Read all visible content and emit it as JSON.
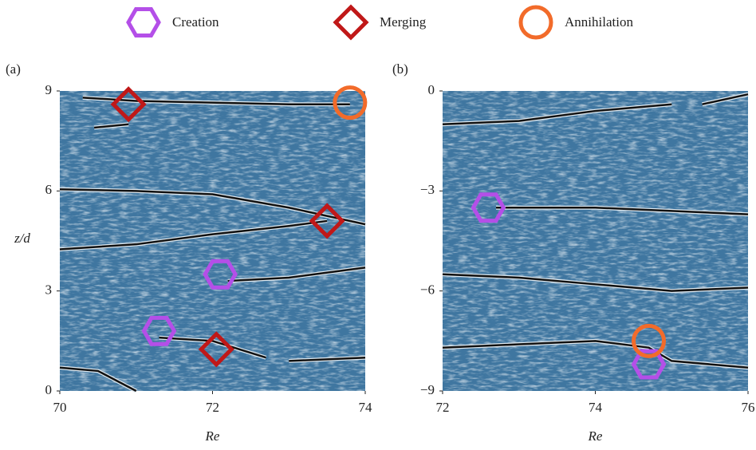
{
  "legend_names": [
    "Creation",
    "Merging",
    "Annihilation"
  ],
  "chart_data": [
    {
      "type": "scatter",
      "label": "(a)",
      "xlabel": "Re",
      "ylabel": "z/d",
      "xlim": [
        70,
        74
      ],
      "ylim": [
        0,
        9
      ],
      "xticks": [
        70,
        72,
        74
      ],
      "yticks": [
        0,
        3,
        6,
        9
      ],
      "series": [
        {
          "color": "#b44fe8",
          "marker": "hexagon",
          "x": [
            72.1,
            71.3
          ],
          "y": [
            3.5,
            1.8
          ]
        },
        {
          "color": "#c01818",
          "marker": "diamond",
          "x": [
            70.9,
            73.5,
            72.05
          ],
          "y": [
            8.6,
            5.1,
            1.25
          ]
        },
        {
          "color": "#f26b2a",
          "marker": "circle",
          "x": [
            73.8
          ],
          "y": [
            8.65
          ]
        }
      ],
      "lines": [
        {
          "x": [
            70.3,
            71,
            72,
            73,
            73.8
          ],
          "y": [
            8.8,
            8.7,
            8.65,
            8.6,
            8.6
          ]
        },
        {
          "x": [
            70.45,
            70.9
          ],
          "y": [
            7.9,
            8.0
          ]
        },
        {
          "x": [
            70,
            71,
            72,
            73,
            74
          ],
          "y": [
            6.05,
            6.0,
            5.9,
            5.5,
            5.0
          ]
        },
        {
          "x": [
            70,
            71,
            72,
            73,
            73.5
          ],
          "y": [
            4.25,
            4.4,
            4.7,
            4.95,
            5.1
          ]
        },
        {
          "x": [
            72.2,
            73,
            74
          ],
          "y": [
            3.3,
            3.4,
            3.7
          ]
        },
        {
          "x": [
            71.3,
            72,
            72.7
          ],
          "y": [
            1.6,
            1.5,
            1.0
          ]
        },
        {
          "x": [
            73,
            74
          ],
          "y": [
            0.9,
            1.0
          ]
        },
        {
          "x": [
            70,
            70.5,
            71
          ],
          "y": [
            0.7,
            0.6,
            0
          ]
        }
      ]
    },
    {
      "type": "scatter",
      "label": "(b)",
      "xlabel": "Re",
      "xlim": [
        72,
        76
      ],
      "ylim": [
        -9,
        0
      ],
      "xticks": [
        72,
        74,
        76
      ],
      "yticks": [
        0,
        {
          "value": -3,
          "label": "−3"
        },
        {
          "value": -6,
          "label": "−6"
        },
        {
          "value": -9,
          "label": "−9"
        }
      ],
      "series": [
        {
          "color": "#b44fe8",
          "marker": "hexagon",
          "x": [
            72.6,
            74.7
          ],
          "y": [
            -3.5,
            -8.2
          ]
        },
        {
          "color": "#f26b2a",
          "marker": "circle",
          "x": [
            74.7
          ],
          "y": [
            -7.5
          ]
        }
      ],
      "lines": [
        {
          "x": [
            72,
            73,
            74,
            75
          ],
          "y": [
            -1.0,
            -0.9,
            -0.6,
            -0.4
          ]
        },
        {
          "x": [
            75.4,
            76
          ],
          "y": [
            -0.4,
            -0.1
          ]
        },
        {
          "x": [
            72.7,
            74,
            75,
            76
          ],
          "y": [
            -3.5,
            -3.5,
            -3.6,
            -3.7
          ]
        },
        {
          "x": [
            72,
            73,
            74,
            75,
            76
          ],
          "y": [
            -5.5,
            -5.6,
            -5.8,
            -6.0,
            -5.9
          ]
        },
        {
          "x": [
            72,
            73,
            74,
            74.7,
            75,
            76
          ],
          "y": [
            -7.7,
            -7.6,
            -7.5,
            -7.7,
            -8.1,
            -8.3
          ]
        }
      ]
    }
  ]
}
